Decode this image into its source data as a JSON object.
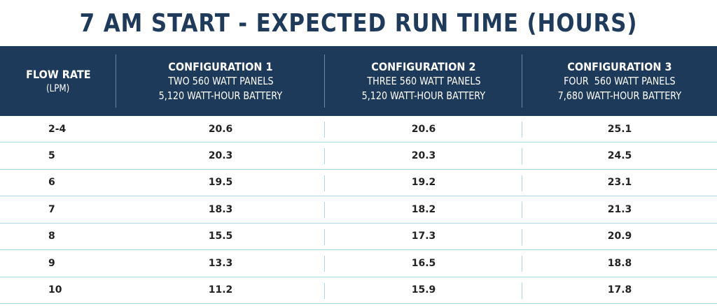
{
  "title": "7 AM START - EXPECTED RUN TIME (HOURS)",
  "header": {
    "flow_rate": "FLOW RATE",
    "flow_unit": "(LPM)",
    "configs": [
      {
        "name": "CONFIGURATION 1",
        "panels": "TWO 560 WATT PANELS",
        "battery": "5,120 WATT-HOUR BATTERY"
      },
      {
        "name": "CONFIGURATION 2",
        "panels": "THREE 560 WATT PANELS",
        "battery": "5,120 WATT-HOUR BATTERY"
      },
      {
        "name": "CONFIGURATION 3",
        "panels": "FOUR  560 WATT PANELS",
        "battery": "7,680 WATT-HOUR BATTERY"
      }
    ]
  },
  "rows": [
    {
      "flow": "2-4",
      "c1": "20.6",
      "c2": "20.6",
      "c3": "25.1"
    },
    {
      "flow": "5",
      "c1": "20.3",
      "c2": "20.3",
      "c3": "24.5"
    },
    {
      "flow": "6",
      "c1": "19.5",
      "c2": "19.2",
      "c3": "23.1"
    },
    {
      "flow": "7",
      "c1": "18.3",
      "c2": "18.2",
      "c3": "21.3"
    },
    {
      "flow": "8",
      "c1": "15.5",
      "c2": "17.3",
      "c3": "20.9"
    },
    {
      "flow": "9",
      "c1": "13.3",
      "c2": "16.5",
      "c3": "18.8"
    },
    {
      "flow": "10",
      "c1": "11.2",
      "c2": "15.9",
      "c3": "17.8"
    }
  ],
  "colors": {
    "header_bg": "#1d3a5a",
    "title_text": "#1f3b5c",
    "grid_line": "#a9d7e6"
  }
}
